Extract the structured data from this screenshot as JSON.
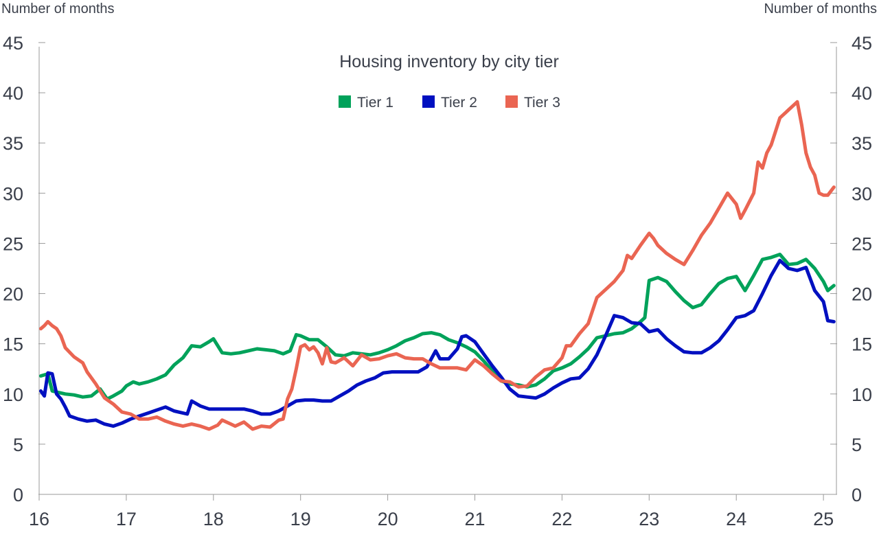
{
  "chart_data": {
    "type": "line",
    "title": "Housing inventory by city tier",
    "ylabel_left": "Number of months",
    "ylabel_right": "Number of months",
    "xlabel": "",
    "x_ticks": [
      "16",
      "17",
      "18",
      "19",
      "20",
      "21",
      "22",
      "23",
      "24",
      "25"
    ],
    "y_ticks": [
      0,
      5,
      10,
      15,
      20,
      25,
      30,
      35,
      40,
      45
    ],
    "ylim": [
      0,
      45
    ],
    "xlim": [
      2016.0,
      2025.15
    ],
    "grid": false,
    "legend_position": "top-center",
    "series": [
      {
        "name": "Tier 1",
        "color": "#00a25a",
        "x": [
          2016.02,
          2016.1,
          2016.15,
          2016.2,
          2016.3,
          2016.4,
          2016.5,
          2016.6,
          2016.7,
          2016.78,
          2016.85,
          2016.95,
          2017.0,
          2017.08,
          2017.15,
          2017.25,
          2017.35,
          2017.45,
          2017.55,
          2017.65,
          2017.75,
          2017.85,
          2017.95,
          2018.0,
          2018.1,
          2018.2,
          2018.3,
          2018.4,
          2018.5,
          2018.6,
          2018.7,
          2018.8,
          2018.88,
          2018.95,
          2019.0,
          2019.1,
          2019.2,
          2019.3,
          2019.4,
          2019.5,
          2019.6,
          2019.7,
          2019.8,
          2019.9,
          2020.0,
          2020.1,
          2020.2,
          2020.3,
          2020.4,
          2020.5,
          2020.6,
          2020.7,
          2020.8,
          2020.9,
          2021.0,
          2021.1,
          2021.2,
          2021.3,
          2021.4,
          2021.5,
          2021.6,
          2021.7,
          2021.8,
          2021.9,
          2022.0,
          2022.1,
          2022.2,
          2022.3,
          2022.4,
          2022.5,
          2022.6,
          2022.7,
          2022.8,
          2022.9,
          2022.95,
          2023.0,
          2023.1,
          2023.2,
          2023.3,
          2023.4,
          2023.5,
          2023.6,
          2023.7,
          2023.8,
          2023.9,
          2024.0,
          2024.1,
          2024.2,
          2024.3,
          2024.4,
          2024.5,
          2024.6,
          2024.7,
          2024.8,
          2024.9,
          2025.0,
          2025.05,
          2025.12
        ],
        "values": [
          11.8,
          12.0,
          10.3,
          10.2,
          10.0,
          9.9,
          9.7,
          9.8,
          10.5,
          9.5,
          9.8,
          10.3,
          10.8,
          11.2,
          11.0,
          11.2,
          11.5,
          11.9,
          12.9,
          13.6,
          14.8,
          14.7,
          15.2,
          15.5,
          14.1,
          14.0,
          14.1,
          14.3,
          14.5,
          14.4,
          14.3,
          14.0,
          14.3,
          15.9,
          15.8,
          15.4,
          15.4,
          14.7,
          13.9,
          13.8,
          14.1,
          14.0,
          13.9,
          14.1,
          14.4,
          14.8,
          15.3,
          15.6,
          16.0,
          16.1,
          15.9,
          15.4,
          15.1,
          14.7,
          14.2,
          13.3,
          12.3,
          11.3,
          11.0,
          10.9,
          10.7,
          10.9,
          11.5,
          12.3,
          12.6,
          13.0,
          13.7,
          14.5,
          15.6,
          15.8,
          16.0,
          16.1,
          16.5,
          17.2,
          17.6,
          21.3,
          21.6,
          21.2,
          20.2,
          19.3,
          18.6,
          18.9,
          20.0,
          21.0,
          21.5,
          21.7,
          20.3,
          21.8,
          23.4,
          23.6,
          23.9,
          22.9,
          23.0,
          23.4,
          22.5,
          21.2,
          20.3,
          20.8
        ]
      },
      {
        "name": "Tier 2",
        "color": "#0010c0",
        "x": [
          2016.02,
          2016.06,
          2016.1,
          2016.15,
          2016.2,
          2016.25,
          2016.3,
          2016.35,
          2016.45,
          2016.55,
          2016.65,
          2016.75,
          2016.85,
          2016.95,
          2017.05,
          2017.15,
          2017.25,
          2017.35,
          2017.45,
          2017.55,
          2017.6,
          2017.7,
          2017.75,
          2017.85,
          2017.95,
          2018.05,
          2018.15,
          2018.25,
          2018.35,
          2018.45,
          2018.55,
          2018.65,
          2018.75,
          2018.85,
          2018.95,
          2019.05,
          2019.15,
          2019.25,
          2019.35,
          2019.45,
          2019.55,
          2019.65,
          2019.75,
          2019.85,
          2019.95,
          2020.05,
          2020.15,
          2020.25,
          2020.35,
          2020.45,
          2020.55,
          2020.6,
          2020.7,
          2020.8,
          2020.85,
          2020.9,
          2021.0,
          2021.1,
          2021.2,
          2021.3,
          2021.4,
          2021.5,
          2021.6,
          2021.7,
          2021.8,
          2021.9,
          2022.0,
          2022.1,
          2022.2,
          2022.3,
          2022.4,
          2022.5,
          2022.6,
          2022.7,
          2022.8,
          2022.9,
          2023.0,
          2023.1,
          2023.2,
          2023.3,
          2023.4,
          2023.5,
          2023.6,
          2023.7,
          2023.8,
          2023.9,
          2024.0,
          2024.1,
          2024.2,
          2024.3,
          2024.4,
          2024.5,
          2024.6,
          2024.7,
          2024.8,
          2024.9,
          2025.0,
          2025.05,
          2025.12
        ],
        "values": [
          10.3,
          9.8,
          12.1,
          12.0,
          10.0,
          9.5,
          8.7,
          7.8,
          7.5,
          7.3,
          7.4,
          7.0,
          6.8,
          7.1,
          7.5,
          7.8,
          8.1,
          8.4,
          8.7,
          8.3,
          8.2,
          8.0,
          9.3,
          8.8,
          8.5,
          8.5,
          8.5,
          8.5,
          8.5,
          8.3,
          8.0,
          8.0,
          8.3,
          8.8,
          9.3,
          9.4,
          9.4,
          9.3,
          9.3,
          9.8,
          10.3,
          10.9,
          11.3,
          11.6,
          12.1,
          12.2,
          12.2,
          12.2,
          12.2,
          12.7,
          14.3,
          13.5,
          13.5,
          14.5,
          15.7,
          15.8,
          15.2,
          14.0,
          12.8,
          11.7,
          10.5,
          9.8,
          9.7,
          9.6,
          10.0,
          10.6,
          11.1,
          11.5,
          11.6,
          12.5,
          13.9,
          15.8,
          17.8,
          17.6,
          17.1,
          17.0,
          16.2,
          16.4,
          15.5,
          14.8,
          14.2,
          14.1,
          14.1,
          14.6,
          15.3,
          16.4,
          17.6,
          17.8,
          18.3,
          20.0,
          21.8,
          23.3,
          22.5,
          22.3,
          22.6,
          20.3,
          19.2,
          17.3,
          17.2
        ]
      },
      {
        "name": "Tier 3",
        "color": "#ea6552",
        "x": [
          2016.02,
          2016.06,
          2016.1,
          2016.15,
          2016.2,
          2016.25,
          2016.3,
          2016.4,
          2016.5,
          2016.55,
          2016.65,
          2016.75,
          2016.85,
          2016.95,
          2017.05,
          2017.15,
          2017.25,
          2017.35,
          2017.45,
          2017.55,
          2017.65,
          2017.75,
          2017.85,
          2017.95,
          2018.05,
          2018.1,
          2018.2,
          2018.25,
          2018.35,
          2018.45,
          2018.55,
          2018.65,
          2018.75,
          2018.8,
          2018.85,
          2018.9,
          2018.95,
          2019.0,
          2019.05,
          2019.1,
          2019.15,
          2019.2,
          2019.25,
          2019.3,
          2019.35,
          2019.4,
          2019.5,
          2019.6,
          2019.7,
          2019.8,
          2019.9,
          2020.0,
          2020.1,
          2020.2,
          2020.3,
          2020.4,
          2020.5,
          2020.6,
          2020.7,
          2020.8,
          2020.9,
          2021.0,
          2021.1,
          2021.2,
          2021.3,
          2021.4,
          2021.5,
          2021.6,
          2021.7,
          2021.8,
          2021.9,
          2022.0,
          2022.05,
          2022.1,
          2022.2,
          2022.3,
          2022.4,
          2022.5,
          2022.6,
          2022.7,
          2022.75,
          2022.8,
          2022.9,
          2023.0,
          2023.05,
          2023.1,
          2023.2,
          2023.3,
          2023.4,
          2023.5,
          2023.6,
          2023.7,
          2023.8,
          2023.9,
          2024.0,
          2024.05,
          2024.1,
          2024.2,
          2024.25,
          2024.3,
          2024.35,
          2024.4,
          2024.5,
          2024.6,
          2024.7,
          2024.75,
          2024.8,
          2024.85,
          2024.9,
          2024.95,
          2025.0,
          2025.05,
          2025.12
        ],
        "values": [
          16.5,
          16.8,
          17.2,
          16.8,
          16.5,
          15.8,
          14.6,
          13.7,
          13.1,
          12.2,
          11.0,
          9.6,
          9.0,
          8.2,
          8.0,
          7.5,
          7.5,
          7.7,
          7.3,
          7.0,
          6.8,
          7.0,
          6.8,
          6.5,
          6.9,
          7.4,
          7.0,
          6.8,
          7.2,
          6.5,
          6.8,
          6.7,
          7.4,
          7.5,
          9.5,
          10.5,
          12.5,
          14.7,
          14.9,
          14.4,
          14.7,
          14.1,
          13.0,
          14.6,
          13.2,
          13.1,
          13.6,
          12.8,
          13.9,
          13.4,
          13.5,
          13.8,
          14.0,
          13.6,
          13.5,
          13.5,
          13.0,
          12.6,
          12.6,
          12.6,
          12.4,
          13.4,
          12.8,
          12.0,
          11.3,
          11.2,
          10.7,
          10.8,
          11.7,
          12.4,
          12.6,
          13.6,
          14.8,
          14.8,
          16.0,
          17.0,
          19.6,
          20.4,
          21.2,
          22.3,
          23.8,
          23.5,
          24.8,
          26.0,
          25.5,
          24.8,
          24.0,
          23.4,
          22.9,
          24.3,
          25.8,
          27.0,
          28.5,
          30.0,
          28.9,
          27.5,
          28.3,
          30.0,
          33.1,
          32.5,
          34.0,
          34.8,
          37.5,
          38.3,
          39.1,
          36.8,
          34.0,
          32.6,
          31.8,
          30.0,
          29.8,
          29.8,
          30.6
        ]
      }
    ]
  }
}
